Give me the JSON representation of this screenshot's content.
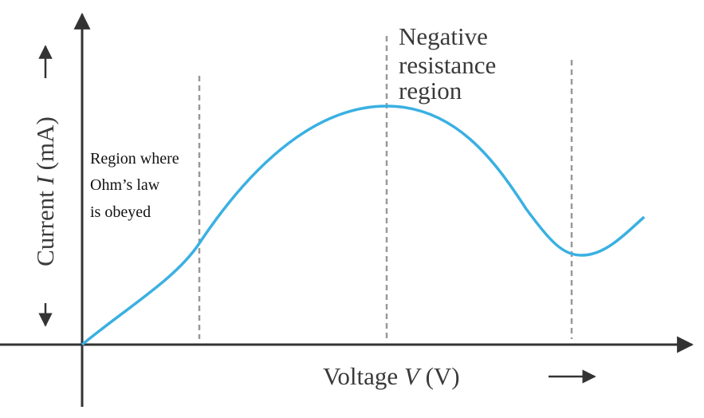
{
  "axes": {
    "x_label": {
      "name": "Voltage",
      "symbol": "V",
      "unit": "(V)"
    },
    "y_label": {
      "name": "Current",
      "symbol": "I",
      "unit": "(mA)"
    }
  },
  "annotations": {
    "negative_resistance": [
      "Negative",
      "resistance",
      "region"
    ],
    "ohms_law": [
      "Region where",
      "Ohm’s law",
      "is obeyed"
    ]
  }
}
